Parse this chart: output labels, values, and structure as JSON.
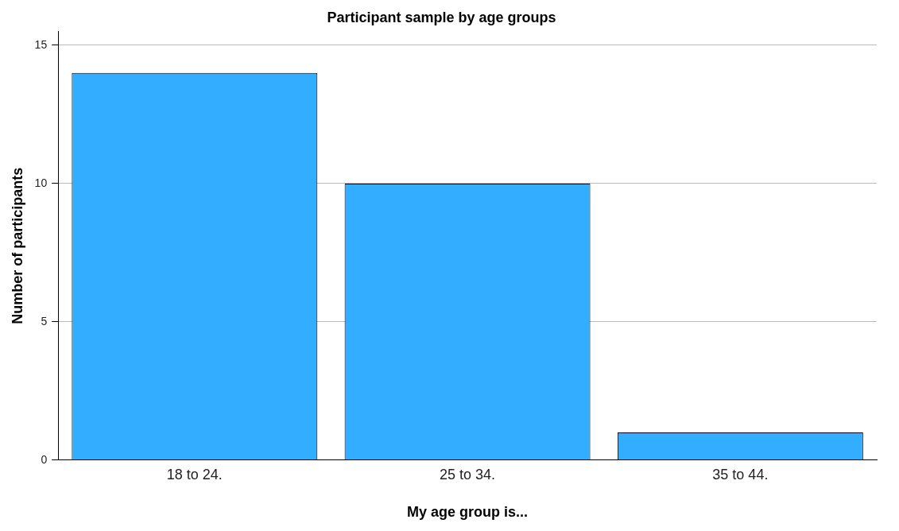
{
  "chart_data": {
    "type": "bar",
    "title": "Participant sample by age groups",
    "xlabel": "My age group is...",
    "ylabel": "Number of participants",
    "categories": [
      "18 to 24.",
      "25 to 34.",
      "35 to 44."
    ],
    "values": [
      14,
      10,
      1
    ],
    "color": "#33adff",
    "ylim": [
      0,
      15.5
    ],
    "yticks": [
      0,
      5,
      10,
      15
    ],
    "grid": "y",
    "legend": false
  }
}
